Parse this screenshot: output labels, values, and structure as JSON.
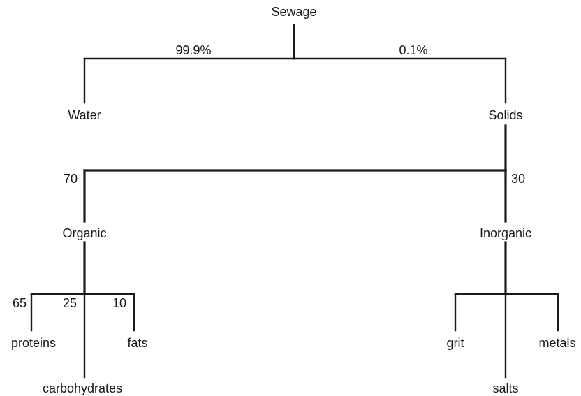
{
  "nodes": {
    "sewage": "Sewage",
    "water": "Water",
    "solids": "Solids",
    "organic": "Organic",
    "inorganic": "Inorganic",
    "proteins": "proteins",
    "carbohydrates": "carbohydrates",
    "fats": "fats",
    "grit": "grit",
    "salts": "salts",
    "metals": "metals"
  },
  "edges": {
    "water_pct": "99.9%",
    "solids_pct": "0.1%",
    "organic_pct": "70",
    "inorganic_pct": "30",
    "proteins_pct": "65",
    "carbohydrates_pct": "25",
    "fats_pct": "10"
  }
}
